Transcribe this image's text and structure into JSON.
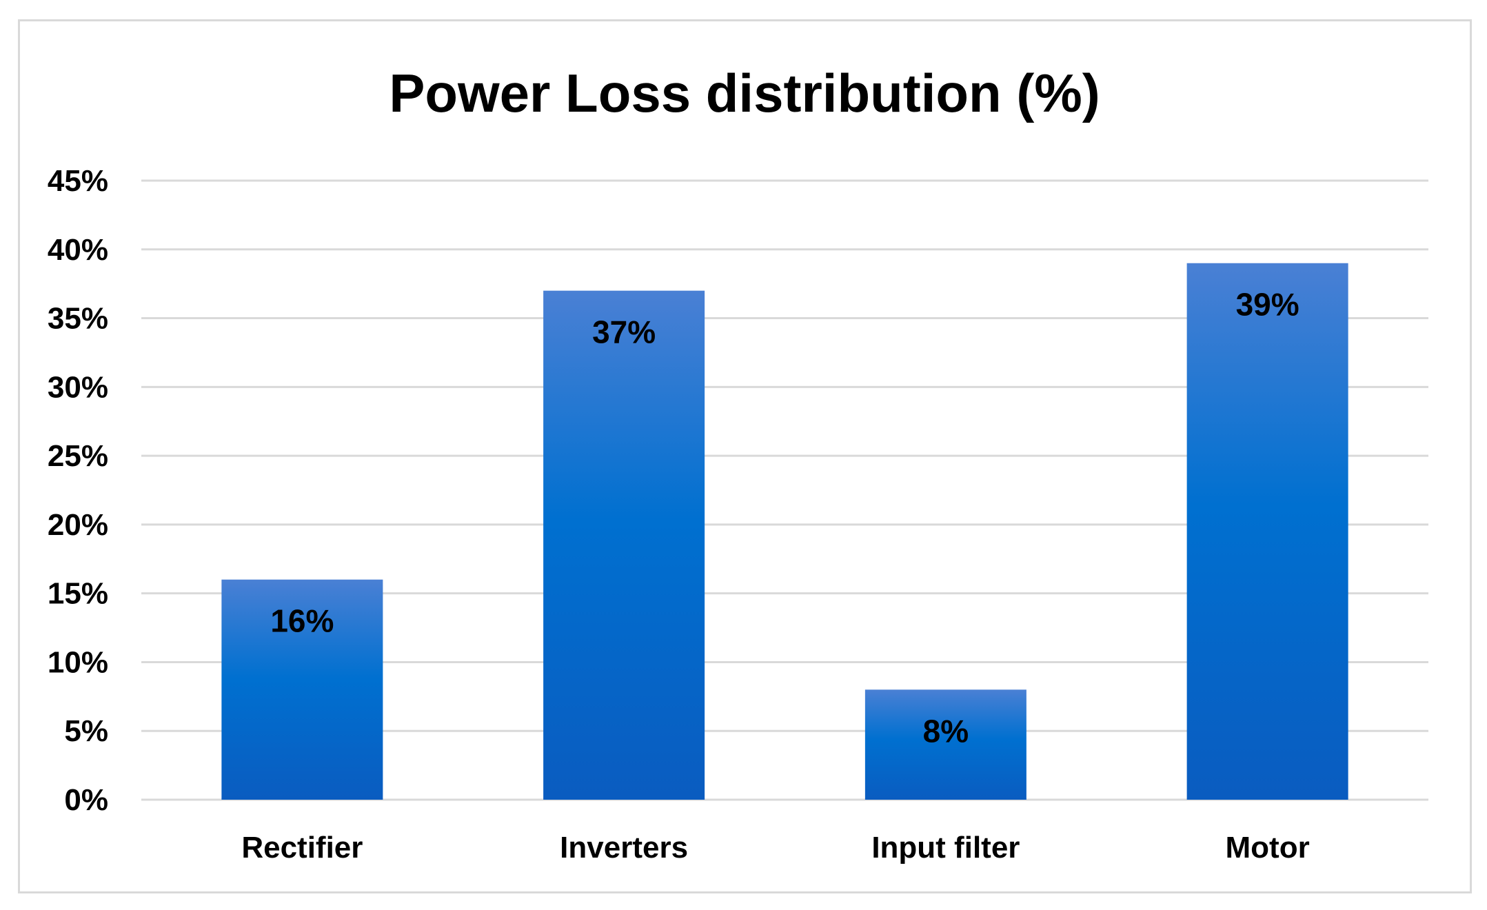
{
  "chart_data": {
    "type": "bar",
    "title": "Power Loss distribution (%)",
    "categories": [
      "Rectifier",
      "Inverters",
      "Input filter",
      "Motor"
    ],
    "values": [
      16,
      37,
      8,
      39
    ],
    "data_labels": [
      "16%",
      "37%",
      "8%",
      "39%"
    ],
    "y_ticks": [
      0,
      5,
      10,
      15,
      20,
      25,
      30,
      35,
      40,
      45
    ],
    "y_tick_labels": [
      "0%",
      "5%",
      "10%",
      "15%",
      "20%",
      "25%",
      "30%",
      "35%",
      "40%",
      "45%"
    ],
    "ylim": [
      0,
      45
    ],
    "xlabel": "",
    "ylabel": "",
    "grid": true,
    "legend": "none",
    "colors": {
      "bar_top": "#4a80d4",
      "bar_mid": "#0070d0",
      "bar_bottom": "#0a5cc0",
      "grid": "#d9d9d9"
    }
  }
}
